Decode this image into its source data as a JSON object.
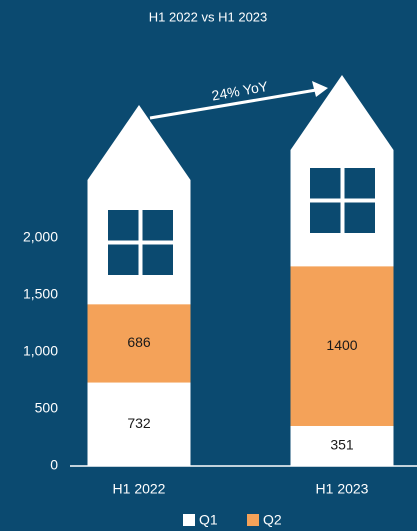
{
  "chart_data": {
    "type": "bar",
    "stacked": true,
    "title": "H1 2022 vs H1 2023",
    "annotation": "24% YoY",
    "categories": [
      "H1 2022",
      "H1 2023"
    ],
    "series": [
      {
        "name": "Q1",
        "color": "#ffffff",
        "values": [
          732,
          351
        ]
      },
      {
        "name": "Q2",
        "color": "#f4a259",
        "values": [
          686,
          1400
        ]
      }
    ],
    "ylim": [
      0,
      2000
    ],
    "yticks": [
      0,
      500,
      {
        "value": 1000,
        "label": "1,000"
      },
      {
        "value": 1500,
        "label": "1,500"
      },
      {
        "value": 2000,
        "label": "2,000"
      }
    ],
    "legend": "bottom"
  }
}
